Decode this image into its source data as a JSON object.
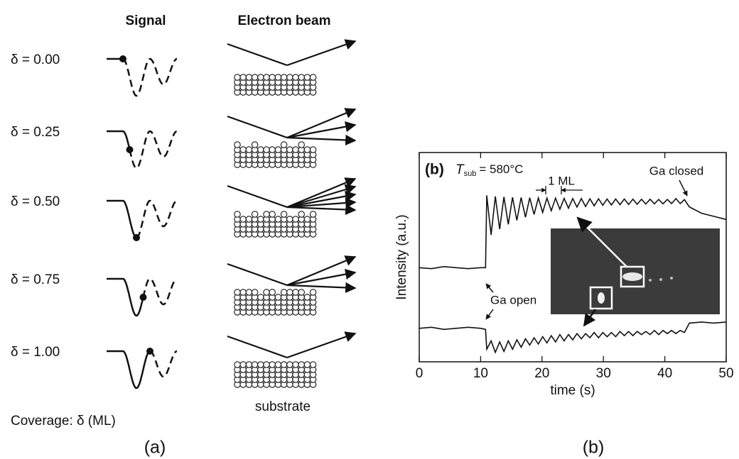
{
  "panel_a": {
    "signal_header": "Signal",
    "beam_header": "Electron beam",
    "rows": [
      {
        "label": "δ = 0.00"
      },
      {
        "label": "δ = 0.25"
      },
      {
        "label": "δ = 0.50"
      },
      {
        "label": "δ = 0.75"
      },
      {
        "label": "δ = 1.00"
      }
    ],
    "substrate_label": "substrate",
    "coverage_label": "Coverage: δ (ML)",
    "caption": "(a)"
  },
  "chart_data": {
    "type": "line",
    "panel_label": "(b)",
    "temperature_symbol": "T",
    "temperature_subscript": "sub",
    "temperature_value": "= 580°C",
    "annotations": {
      "period": "1 ML",
      "closed": "Ga closed",
      "open": "Ga open"
    },
    "x_label": "time (s)",
    "y_label": "Intensity (a.u.)",
    "xlim": [
      0,
      50
    ],
    "xticks": [
      0,
      10,
      20,
      30,
      40,
      50
    ],
    "ylim": [
      0,
      10
    ],
    "x": [
      0,
      2,
      4,
      6,
      8,
      10,
      10.8,
      11.0,
      11.7,
      12.4,
      13.1,
      13.8,
      14.5,
      15.2,
      15.9,
      16.6,
      17.3,
      18.0,
      18.7,
      19.4,
      20.1,
      20.8,
      21.5,
      22.2,
      22.9,
      23.6,
      24.3,
      25.0,
      25.7,
      26.4,
      27.1,
      27.8,
      28.5,
      29.2,
      29.9,
      30.6,
      31.3,
      32.0,
      32.7,
      33.4,
      34.1,
      34.8,
      35.5,
      36.2,
      36.9,
      37.6,
      38.3,
      39.0,
      39.7,
      40.4,
      41.1,
      41.8,
      42.5,
      43.2,
      44,
      46,
      48,
      50
    ],
    "series": [
      {
        "color": "#111111",
        "values": [
          4.5,
          4.45,
          4.55,
          4.5,
          4.45,
          4.5,
          4.5,
          7.95,
          6.06,
          7.9,
          6.34,
          7.88,
          6.57,
          7.86,
          6.76,
          7.85,
          6.91,
          7.84,
          7.04,
          7.83,
          7.14,
          7.82,
          7.22,
          7.82,
          7.29,
          7.81,
          7.34,
          7.8,
          7.39,
          7.8,
          7.42,
          7.79,
          7.45,
          7.79,
          7.48,
          7.78,
          7.49,
          7.78,
          7.51,
          7.78,
          7.52,
          7.77,
          7.53,
          7.77,
          7.54,
          7.77,
          7.55,
          7.76,
          7.55,
          7.76,
          7.56,
          7.8,
          7.56,
          7.75,
          7.4,
          7.1,
          6.95,
          6.8
        ]
      },
      {
        "color": "#111111",
        "values": [
          1.6,
          1.65,
          1.55,
          1.6,
          1.65,
          1.6,
          1.55,
          0.6,
          1.0,
          0.45,
          0.95,
          0.5,
          1.0,
          0.6,
          1.05,
          0.7,
          1.1,
          0.8,
          1.15,
          0.85,
          1.2,
          0.9,
          1.25,
          0.95,
          1.3,
          1.0,
          1.3,
          1.05,
          1.35,
          1.1,
          1.35,
          1.15,
          1.4,
          1.15,
          1.4,
          1.2,
          1.4,
          1.2,
          1.45,
          1.25,
          1.45,
          1.25,
          1.45,
          1.3,
          1.45,
          1.3,
          1.5,
          1.3,
          1.5,
          1.35,
          1.5,
          1.35,
          1.5,
          1.4,
          1.85,
          1.9,
          1.85,
          1.9
        ]
      }
    ],
    "caption": "(b)"
  }
}
